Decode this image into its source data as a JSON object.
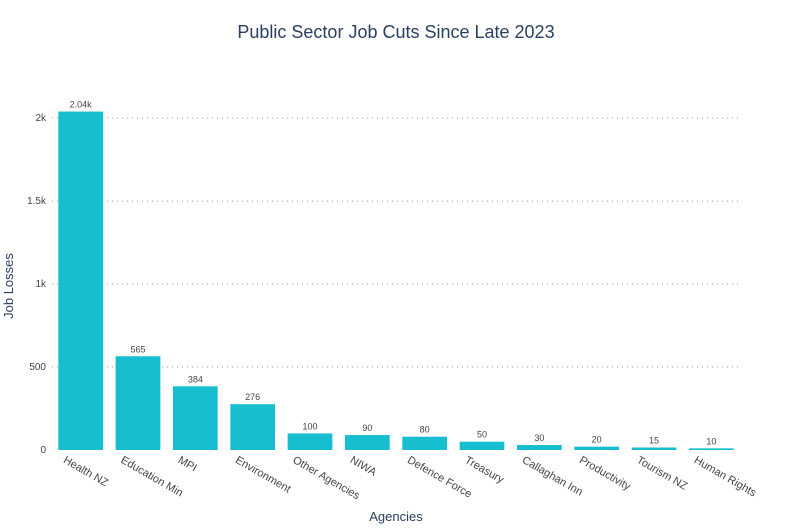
{
  "chart_data": {
    "type": "bar",
    "title": "Public Sector Job Cuts Since Late 2023",
    "xlabel": "Agencies",
    "ylabel": "Job Losses",
    "categories": [
      "Health NZ",
      "Education Min",
      "MPI",
      "Environment",
      "Other Agencies",
      "NIWA",
      "Defence Force",
      "Treasury",
      "Callaghan Inn",
      "Productivity",
      "Tourism NZ",
      "Human Rights"
    ],
    "values": [
      2040,
      565,
      384,
      276,
      100,
      90,
      80,
      50,
      30,
      20,
      15,
      10
    ],
    "data_labels": [
      "2.04k",
      "565",
      "384",
      "276",
      "100",
      "90",
      "80",
      "50",
      "30",
      "20",
      "15",
      "10"
    ],
    "ylim": [
      0,
      2200
    ],
    "y_ticks": [
      0,
      500,
      1000,
      1500,
      2000
    ],
    "y_tick_labels": [
      "0",
      "500",
      "1k",
      "1.5k",
      "2k"
    ],
    "bar_color": "#17becf",
    "grid": true
  }
}
